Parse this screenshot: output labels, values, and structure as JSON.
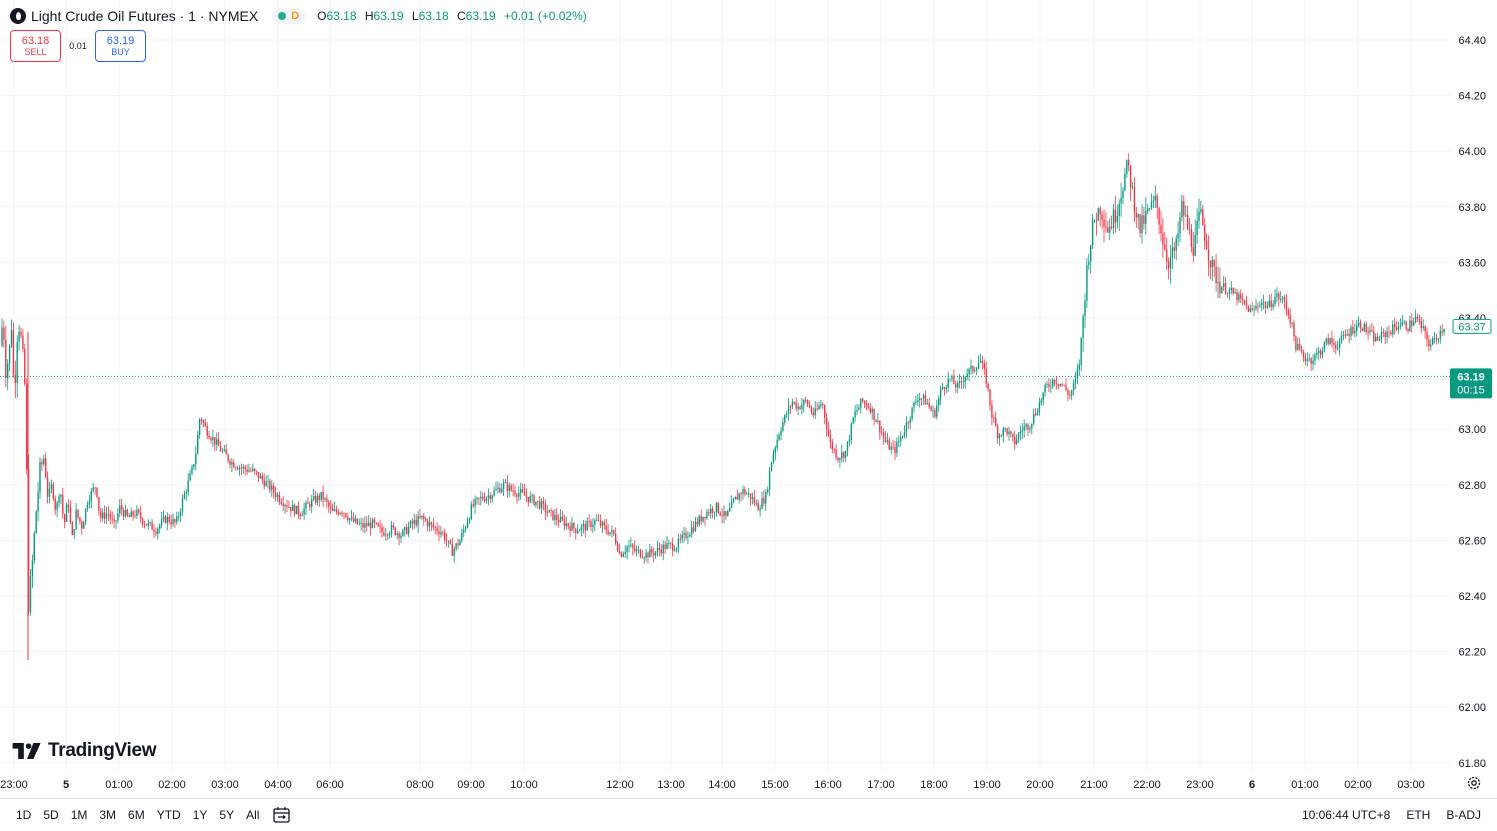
{
  "header": {
    "symbol_title": "Light Crude Oil Futures · 1 · NYMEX",
    "status_letter": "D",
    "ohlc": {
      "o_label": "O",
      "o_value": "63.18",
      "h_label": "H",
      "h_value": "63.19",
      "l_label": "L",
      "l_value": "63.18",
      "c_label": "C",
      "c_value": "63.19",
      "change": "+0.01 (+0.02%)"
    }
  },
  "trade": {
    "sell_price": "63.18",
    "sell_label": "SELL",
    "spread": "0.01",
    "buy_price": "63.19",
    "buy_label": "BUY"
  },
  "logo_text": "TradingView",
  "bottom_bar": {
    "ranges": [
      "1D",
      "5D",
      "1M",
      "3M",
      "6M",
      "YTD",
      "1Y",
      "5Y",
      "All"
    ],
    "clock": "10:06:44 UTC+8",
    "session": "ETH",
    "adjust": "B-ADJ"
  },
  "colors": {
    "up": "#089981",
    "down": "#f23645",
    "sell": "#f23645",
    "buy": "#2962ff",
    "last_price_bg": "#089981"
  },
  "icons": [
    "calendar-range-icon",
    "settings-icon",
    "symbol-logo-icon"
  ],
  "chart_data": {
    "type": "candlestick",
    "ylim": [
      61.72,
      64.52
    ],
    "y_ticks": [
      "64.40",
      "64.20",
      "64.00",
      "63.80",
      "63.60",
      "63.40",
      "63.00",
      "62.80",
      "62.60",
      "62.40",
      "62.20",
      "62.00",
      "61.80"
    ],
    "x_ticks": [
      "23:00",
      "5",
      "01:00",
      "02:00",
      "03:00",
      "04:00",
      "06:00",
      "08:00",
      "09:00",
      "10:00",
      "12:00",
      "13:00",
      "14:00",
      "15:00",
      "16:00",
      "17:00",
      "18:00",
      "19:00",
      "20:00",
      "21:00",
      "22:00",
      "23:00",
      "6",
      "01:00",
      "02:00",
      "03:00"
    ],
    "last_price": 63.19,
    "last_price_label": "63.19",
    "countdown": "00:15",
    "marker_price": 63.37,
    "marker_label": "63.37",
    "price_path": [
      [
        0,
        63.3
      ],
      [
        3,
        63.4
      ],
      [
        6,
        63.2
      ],
      [
        10,
        63.3
      ],
      [
        12,
        63.4
      ],
      [
        14,
        63.1
      ],
      [
        18,
        63.4
      ],
      [
        22,
        63.3
      ],
      [
        26,
        63.1
      ],
      [
        28,
        62.35
      ],
      [
        32,
        62.5
      ],
      [
        36,
        62.7
      ],
      [
        40,
        62.85
      ],
      [
        44,
        62.9
      ],
      [
        48,
        62.75
      ],
      [
        52,
        62.8
      ],
      [
        56,
        62.7
      ],
      [
        60,
        62.8
      ],
      [
        64,
        62.65
      ],
      [
        68,
        62.75
      ],
      [
        72,
        62.6
      ],
      [
        76,
        62.7
      ],
      [
        82,
        62.65
      ],
      [
        88,
        62.75
      ],
      [
        96,
        62.8
      ],
      [
        100,
        62.68
      ],
      [
        108,
        62.7
      ],
      [
        114,
        62.65
      ],
      [
        120,
        62.72
      ],
      [
        128,
        62.68
      ],
      [
        136,
        62.7
      ],
      [
        146,
        62.66
      ],
      [
        156,
        62.64
      ],
      [
        166,
        62.68
      ],
      [
        176,
        62.66
      ],
      [
        184,
        62.76
      ],
      [
        192,
        62.85
      ],
      [
        196,
        62.92
      ],
      [
        200,
        63.05
      ],
      [
        206,
        63.0
      ],
      [
        212,
        62.97
      ],
      [
        222,
        62.92
      ],
      [
        232,
        62.88
      ],
      [
        242,
        62.86
      ],
      [
        252,
        62.85
      ],
      [
        262,
        62.82
      ],
      [
        270,
        62.79
      ],
      [
        280,
        62.75
      ],
      [
        290,
        62.72
      ],
      [
        300,
        62.7
      ],
      [
        312,
        62.74
      ],
      [
        322,
        62.76
      ],
      [
        332,
        62.7
      ],
      [
        342,
        62.71
      ],
      [
        352,
        62.67
      ],
      [
        362,
        62.65
      ],
      [
        372,
        62.66
      ],
      [
        382,
        62.63
      ],
      [
        392,
        62.64
      ],
      [
        402,
        62.62
      ],
      [
        412,
        62.66
      ],
      [
        422,
        62.68
      ],
      [
        432,
        62.65
      ],
      [
        442,
        62.63
      ],
      [
        452,
        62.56
      ],
      [
        460,
        62.6
      ],
      [
        466,
        62.66
      ],
      [
        472,
        62.72
      ],
      [
        480,
        62.75
      ],
      [
        488,
        62.76
      ],
      [
        496,
        62.78
      ],
      [
        504,
        62.8
      ],
      [
        512,
        62.78
      ],
      [
        520,
        62.77
      ],
      [
        530,
        62.75
      ],
      [
        540,
        62.73
      ],
      [
        548,
        62.7
      ],
      [
        556,
        62.68
      ],
      [
        566,
        62.66
      ],
      [
        576,
        62.64
      ],
      [
        586,
        62.65
      ],
      [
        596,
        62.67
      ],
      [
        606,
        62.64
      ],
      [
        614,
        62.62
      ],
      [
        620,
        62.55
      ],
      [
        628,
        62.58
      ],
      [
        636,
        62.56
      ],
      [
        646,
        62.55
      ],
      [
        656,
        62.56
      ],
      [
        666,
        62.58
      ],
      [
        676,
        62.58
      ],
      [
        686,
        62.62
      ],
      [
        696,
        62.66
      ],
      [
        706,
        62.7
      ],
      [
        716,
        62.72
      ],
      [
        726,
        62.68
      ],
      [
        734,
        62.74
      ],
      [
        742,
        62.78
      ],
      [
        750,
        62.76
      ],
      [
        758,
        62.72
      ],
      [
        766,
        62.76
      ],
      [
        772,
        62.9
      ],
      [
        780,
        63.0
      ],
      [
        786,
        63.05
      ],
      [
        792,
        63.1
      ],
      [
        798,
        63.08
      ],
      [
        806,
        63.1
      ],
      [
        814,
        63.05
      ],
      [
        822,
        63.1
      ],
      [
        830,
        62.95
      ],
      [
        838,
        62.9
      ],
      [
        846,
        62.92
      ],
      [
        854,
        63.05
      ],
      [
        862,
        63.1
      ],
      [
        870,
        63.08
      ],
      [
        878,
        63.02
      ],
      [
        886,
        62.95
      ],
      [
        894,
        62.92
      ],
      [
        902,
        62.98
      ],
      [
        910,
        63.05
      ],
      [
        918,
        63.12
      ],
      [
        926,
        63.1
      ],
      [
        934,
        63.05
      ],
      [
        942,
        63.15
      ],
      [
        950,
        63.18
      ],
      [
        958,
        63.15
      ],
      [
        966,
        63.2
      ],
      [
        974,
        63.22
      ],
      [
        980,
        63.25
      ],
      [
        986,
        63.18
      ],
      [
        992,
        63.05
      ],
      [
        998,
        62.98
      ],
      [
        1006,
        63.0
      ],
      [
        1014,
        62.95
      ],
      [
        1022,
        63.0
      ],
      [
        1030,
        63.02
      ],
      [
        1038,
        63.08
      ],
      [
        1046,
        63.15
      ],
      [
        1054,
        63.18
      ],
      [
        1062,
        63.16
      ],
      [
        1070,
        63.12
      ],
      [
        1076,
        63.18
      ],
      [
        1080,
        63.25
      ],
      [
        1084,
        63.45
      ],
      [
        1088,
        63.62
      ],
      [
        1094,
        63.75
      ],
      [
        1100,
        63.8
      ],
      [
        1108,
        63.72
      ],
      [
        1116,
        63.78
      ],
      [
        1124,
        63.9
      ],
      [
        1128,
        63.95
      ],
      [
        1134,
        63.82
      ],
      [
        1140,
        63.72
      ],
      [
        1148,
        63.78
      ],
      [
        1156,
        63.82
      ],
      [
        1162,
        63.7
      ],
      [
        1168,
        63.6
      ],
      [
        1176,
        63.65
      ],
      [
        1182,
        63.8
      ],
      [
        1188,
        63.72
      ],
      [
        1194,
        63.65
      ],
      [
        1200,
        63.78
      ],
      [
        1206,
        63.68
      ],
      [
        1212,
        63.58
      ],
      [
        1220,
        63.52
      ],
      [
        1228,
        63.5
      ],
      [
        1236,
        63.48
      ],
      [
        1244,
        63.45
      ],
      [
        1252,
        63.42
      ],
      [
        1260,
        63.46
      ],
      [
        1268,
        63.44
      ],
      [
        1276,
        63.48
      ],
      [
        1284,
        63.46
      ],
      [
        1290,
        63.4
      ],
      [
        1296,
        63.3
      ],
      [
        1304,
        63.26
      ],
      [
        1312,
        63.25
      ],
      [
        1320,
        63.28
      ],
      [
        1328,
        63.32
      ],
      [
        1336,
        63.3
      ],
      [
        1344,
        63.33
      ],
      [
        1352,
        63.36
      ],
      [
        1360,
        63.38
      ],
      [
        1368,
        63.35
      ],
      [
        1376,
        63.32
      ],
      [
        1384,
        63.34
      ],
      [
        1392,
        63.36
      ],
      [
        1400,
        63.38
      ],
      [
        1408,
        63.37
      ],
      [
        1416,
        63.4
      ],
      [
        1424,
        63.35
      ],
      [
        1430,
        63.3
      ],
      [
        1436,
        63.33
      ],
      [
        1442,
        63.36
      ],
      [
        1446,
        63.38
      ]
    ]
  }
}
